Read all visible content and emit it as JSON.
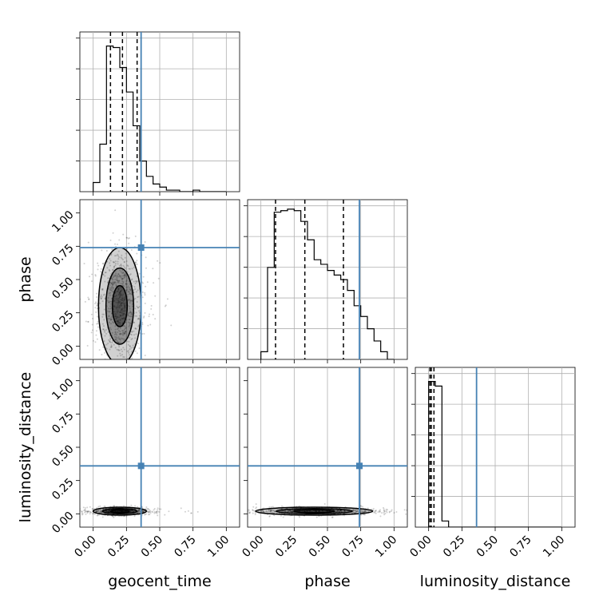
{
  "chart_data": {
    "type": "corner",
    "parameters": [
      "geocent_time",
      "phase",
      "luminosity_distance"
    ],
    "axis_range": [
      -0.1,
      1.1
    ],
    "ticks": [
      0.0,
      0.25,
      0.5,
      0.75,
      1.0
    ],
    "tick_labels": [
      "0.00",
      "0.25",
      "0.50",
      "0.75",
      "1.00"
    ],
    "grid": true,
    "injection": {
      "geocent_time": 0.36,
      "phase": 0.74,
      "luminosity_distance": 0.36
    },
    "injection_color": "#4682b4",
    "quantiles": {
      "geocent_time": [
        0.13,
        0.22,
        0.33
      ],
      "phase": [
        0.11,
        0.33,
        0.62
      ],
      "luminosity_distance": [
        0.01,
        0.02,
        0.04
      ]
    },
    "histograms": {
      "geocent_time": {
        "edges": [
          0.0,
          0.05,
          0.1,
          0.15,
          0.2,
          0.25,
          0.3,
          0.35,
          0.4,
          0.45,
          0.5,
          0.55,
          0.6,
          0.65,
          0.7,
          0.75,
          0.8,
          0.85,
          0.9,
          0.95,
          1.0
        ],
        "density": [
          0.06,
          0.31,
          0.95,
          0.94,
          0.81,
          0.65,
          0.43,
          0.2,
          0.1,
          0.05,
          0.03,
          0.01,
          0.01,
          0.0,
          0.0,
          0.01,
          0.0,
          0.0,
          0.0,
          0.0
        ]
      },
      "phase": {
        "edges": [
          0.0,
          0.05,
          0.1,
          0.15,
          0.2,
          0.25,
          0.3,
          0.35,
          0.4,
          0.45,
          0.5,
          0.55,
          0.6,
          0.65,
          0.7,
          0.75,
          0.8,
          0.85,
          0.9,
          0.95,
          1.0
        ],
        "density": [
          0.05,
          0.6,
          0.96,
          0.97,
          0.98,
          0.97,
          0.9,
          0.78,
          0.65,
          0.62,
          0.58,
          0.55,
          0.52,
          0.45,
          0.35,
          0.28,
          0.2,
          0.12,
          0.05,
          0.0
        ]
      },
      "luminosity_distance": {
        "edges": [
          0.0,
          0.05,
          0.1,
          0.15,
          0.2,
          0.25,
          0.3,
          0.35,
          0.4,
          0.45,
          0.5,
          0.55,
          0.6,
          0.65,
          0.7,
          0.75,
          0.8,
          0.85,
          0.9,
          0.95,
          1.0
        ],
        "density": [
          0.95,
          0.92,
          0.04,
          0.0,
          0.0,
          0.0,
          0.0,
          0.0,
          0.0,
          0.0,
          0.0,
          0.0,
          0.0,
          0.0,
          0.0,
          0.0,
          0.0,
          0.0,
          0.0,
          0.0
        ]
      }
    },
    "scatter_2d": {
      "phase_vs_geocent_time": {
        "x_center": 0.2,
        "y_center": 0.3,
        "x_spread": 0.08,
        "y_spread": 0.22
      },
      "luminosity_distance_vs_geocent_time": {
        "x_center": 0.2,
        "y_center": 0.02,
        "x_spread": 0.1,
        "y_spread": 0.015
      },
      "luminosity_distance_vs_phase": {
        "x_center": 0.4,
        "y_center": 0.02,
        "x_spread": 0.22,
        "y_spread": 0.015
      }
    }
  }
}
